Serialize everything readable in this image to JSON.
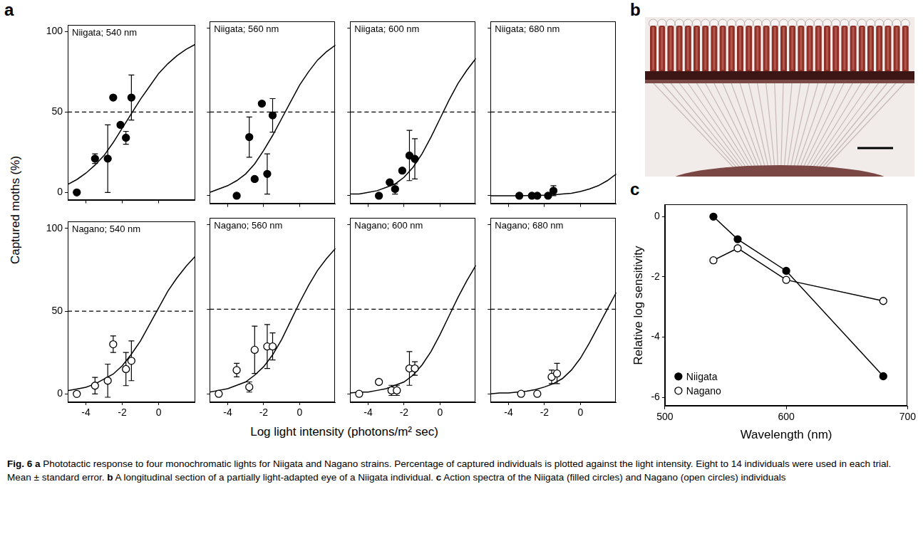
{
  "figure": {
    "panels": [
      {
        "letter": "a",
        "y_label": "Captured moths (%)",
        "x_label": "Log light intensity (photons/m² sec)"
      },
      {
        "letter": "b"
      },
      {
        "letter": "c"
      }
    ],
    "caption": {
      "label": "Fig. 6",
      "parts": [
        {
          "letter": "a",
          "text": "Phototactic response to four monochromatic lights for Niigata and Nagano strains. Percentage of captured individuals is plotted against the light intensity. Eight to 14 individuals were used in each trial. Mean ± standard error."
        },
        {
          "letter": "b",
          "text": "A longitudinal section of a partially light-adapted eye of a Niigata individual."
        },
        {
          "letter": "c",
          "text": "Action spectra of the Niigata (filled circles) and Nagano (open circles) individuals"
        }
      ]
    }
  },
  "chart_data": [
    {
      "type": "scatter",
      "title": "Niigata; 540 nm",
      "xlim": [
        -5,
        2
      ],
      "ylim": [
        -5,
        104
      ],
      "xticks": [
        -4,
        -2,
        0
      ],
      "yticks": [
        0,
        50,
        100
      ],
      "grid": false,
      "tick_labels": "y",
      "hlines": [
        {
          "value": 50,
          "line_style": "dashed"
        }
      ],
      "series": [
        {
          "type": "scatter",
          "marker": "filled_circle",
          "color": "#000000",
          "x": [
            -4.5,
            -3.5,
            -2.8,
            -2.5,
            -2.1,
            -1.8,
            -1.5
          ],
          "values": [
            0,
            21,
            21,
            59,
            42,
            34,
            59
          ],
          "errors": [
            null,
            3,
            21,
            null,
            null,
            4,
            14
          ]
        },
        {
          "type": "line",
          "line_style": "solid",
          "color": "#000000",
          "x": [
            -5,
            -4.5,
            -4,
            -3.5,
            -3,
            -2.5,
            -2,
            -1.5,
            -1,
            -0.5,
            0,
            0.5,
            1,
            1.5,
            2
          ],
          "values": [
            5,
            8,
            12,
            17,
            23,
            31,
            40,
            49,
            58,
            66,
            74,
            80,
            85,
            89,
            92
          ]
        }
      ]
    },
    {
      "type": "scatter",
      "title": "Niigata; 560 nm",
      "xlim": [
        -5,
        2
      ],
      "ylim": [
        -5,
        104
      ],
      "xticks": [
        -4,
        -2,
        0
      ],
      "yticks": [
        0,
        50,
        100
      ],
      "grid": false,
      "tick_labels": false,
      "hlines": [
        {
          "value": 50,
          "line_style": "dashed"
        }
      ],
      "series": [
        {
          "type": "scatter",
          "marker": "filled_circle",
          "color": "#000000",
          "x": [
            -3.5,
            -2.8,
            -2.5,
            -2.1,
            -1.8,
            -1.5
          ],
          "values": [
            0,
            35,
            10,
            55,
            13,
            48
          ],
          "errors": [
            null,
            12,
            null,
            null,
            12,
            10
          ]
        },
        {
          "type": "line",
          "line_style": "solid",
          "color": "#000000",
          "x": [
            -5,
            -4.5,
            -4,
            -3.5,
            -3,
            -2.5,
            -2,
            -1.5,
            -1,
            -0.5,
            0,
            0.5,
            1,
            1.5,
            2
          ],
          "values": [
            2,
            4,
            6,
            9,
            13,
            19,
            27,
            36,
            46,
            56,
            66,
            74,
            81,
            86,
            90
          ]
        }
      ]
    },
    {
      "type": "scatter",
      "title": "Niigata; 600 nm",
      "xlim": [
        -5,
        2
      ],
      "ylim": [
        -5,
        104
      ],
      "xticks": [
        -4,
        -2,
        0
      ],
      "yticks": [
        0,
        50,
        100
      ],
      "grid": false,
      "tick_labels": false,
      "hlines": [
        {
          "value": 50,
          "line_style": "dashed"
        }
      ],
      "series": [
        {
          "type": "scatter",
          "marker": "filled_circle",
          "color": "#000000",
          "x": [
            -3.4,
            -2.8,
            -2.5,
            -2.1,
            -1.7,
            -1.4
          ],
          "values": [
            0,
            8,
            4,
            15,
            24,
            22
          ],
          "errors": [
            null,
            null,
            3,
            null,
            15,
            12
          ]
        },
        {
          "type": "line",
          "line_style": "solid",
          "color": "#000000",
          "x": [
            -5,
            -4.5,
            -4,
            -3.5,
            -3,
            -2.5,
            -2,
            -1.5,
            -1,
            -0.5,
            0,
            0.5,
            1,
            1.5,
            2
          ],
          "values": [
            1,
            1,
            2,
            3,
            5,
            7,
            11,
            17,
            25,
            35,
            46,
            57,
            67,
            75,
            82
          ]
        }
      ]
    },
    {
      "type": "scatter",
      "title": "Niigata; 680 nm",
      "xlim": [
        -5,
        2
      ],
      "ylim": [
        -5,
        104
      ],
      "xticks": [
        -4,
        -2,
        0
      ],
      "yticks": [
        0,
        50,
        100
      ],
      "grid": false,
      "tick_labels": false,
      "hlines": [
        {
          "value": 50,
          "line_style": "dashed"
        }
      ],
      "series": [
        {
          "type": "scatter",
          "marker": "filled_circle",
          "color": "#000000",
          "x": [
            -3.4,
            -2.7,
            -2.4,
            -1.8,
            -1.5
          ],
          "values": [
            0,
            0,
            0,
            0,
            3
          ],
          "errors": [
            null,
            null,
            null,
            null,
            3
          ]
        },
        {
          "type": "line",
          "line_style": "solid",
          "color": "#000000",
          "x": [
            -5,
            -4.5,
            -4,
            -3.5,
            -3,
            -2.5,
            -2,
            -1.5,
            -1,
            -0.5,
            0,
            0.5,
            1,
            1.5,
            2
          ],
          "values": [
            0,
            0,
            0,
            0,
            0.1,
            0.2,
            0.3,
            0.5,
            1,
            1.5,
            2.5,
            4,
            6,
            9,
            13
          ]
        }
      ]
    },
    {
      "type": "scatter",
      "title": "Nagano; 540 nm",
      "xlim": [
        -5,
        2
      ],
      "ylim": [
        -5,
        104
      ],
      "xticks": [
        -4,
        -2,
        0
      ],
      "yticks": [
        0,
        50,
        100
      ],
      "grid": false,
      "hlines": [
        {
          "value": 50,
          "line_style": "dashed"
        }
      ],
      "series": [
        {
          "type": "scatter",
          "marker": "open_circle",
          "color": "#000000",
          "x": [
            -4.5,
            -3.5,
            -2.8,
            -2.5,
            -1.8,
            -1.5
          ],
          "values": [
            0,
            5,
            8,
            30,
            15,
            20
          ],
          "errors": [
            null,
            5,
            10,
            5,
            10,
            12
          ]
        },
        {
          "type": "line",
          "line_style": "solid",
          "color": "#000000",
          "x": [
            -5,
            -4.5,
            -4,
            -3.5,
            -3,
            -2.5,
            -2,
            -1.5,
            -1,
            -0.5,
            0,
            0.5,
            1,
            1.5,
            2
          ],
          "values": [
            2,
            3,
            4,
            6,
            9,
            12,
            17,
            24,
            32,
            42,
            52,
            62,
            70,
            77,
            83
          ]
        }
      ]
    },
    {
      "type": "scatter",
      "title": "Nagano; 560 nm",
      "xlim": [
        -5,
        2
      ],
      "ylim": [
        -5,
        104
      ],
      "xticks": [
        -4,
        -2,
        0
      ],
      "yticks": [
        0,
        50,
        100
      ],
      "grid": false,
      "tick_labels": "x",
      "hlines": [
        {
          "value": 50,
          "line_style": "dashed"
        }
      ],
      "series": [
        {
          "type": "scatter",
          "marker": "open_circle",
          "color": "#000000",
          "x": [
            -4.5,
            -3.5,
            -2.8,
            -2.5,
            -1.8,
            -1.5
          ],
          "values": [
            0,
            14,
            4,
            26,
            28,
            28
          ],
          "errors": [
            null,
            4,
            3,
            14,
            13,
            8
          ]
        },
        {
          "type": "line",
          "line_style": "solid",
          "color": "#000000",
          "x": [
            -5,
            -4.5,
            -4,
            -3.5,
            -3,
            -2.5,
            -2,
            -1.5,
            -1,
            -0.5,
            0,
            0.5,
            1,
            1.5,
            2
          ],
          "values": [
            1,
            2,
            3,
            5,
            7,
            11,
            16,
            23,
            32,
            43,
            54,
            64,
            73,
            80,
            86
          ]
        }
      ]
    },
    {
      "type": "scatter",
      "title": "Nagano; 600 nm",
      "xlim": [
        -5,
        2
      ],
      "ylim": [
        -5,
        104
      ],
      "xticks": [
        -4,
        -2,
        0
      ],
      "yticks": [
        0,
        50,
        100
      ],
      "grid": false,
      "tick_labels": "x",
      "hlines": [
        {
          "value": 50,
          "line_style": "dashed"
        }
      ],
      "series": [
        {
          "type": "scatter",
          "marker": "open_circle",
          "color": "#000000",
          "x": [
            -4.5,
            -3.4,
            -2.7,
            -2.4,
            -1.7,
            -1.4
          ],
          "values": [
            0,
            7,
            2,
            2,
            15,
            15
          ],
          "errors": [
            null,
            null,
            3,
            3,
            10,
            4
          ]
        },
        {
          "type": "line",
          "line_style": "solid",
          "color": "#000000",
          "x": [
            -5,
            -4.5,
            -4,
            -3.5,
            -3,
            -2.5,
            -2,
            -1.5,
            -1,
            -0.5,
            0,
            0.5,
            1,
            1.5,
            2
          ],
          "values": [
            0.5,
            1,
            1,
            2,
            3,
            5,
            7,
            11,
            17,
            25,
            35,
            46,
            57,
            67,
            76
          ]
        }
      ]
    },
    {
      "type": "scatter",
      "title": "Nagano; 680 nm",
      "xlim": [
        -5,
        2
      ],
      "ylim": [
        -5,
        104
      ],
      "xticks": [
        -4,
        -2,
        0
      ],
      "yticks": [
        0,
        50,
        100
      ],
      "grid": false,
      "tick_labels": "x",
      "hlines": [
        {
          "value": 50,
          "line_style": "dashed"
        }
      ],
      "series": [
        {
          "type": "scatter",
          "marker": "open_circle",
          "color": "#000000",
          "x": [
            -3.3,
            -2.4,
            -1.6,
            -1.3
          ],
          "values": [
            0,
            0,
            10,
            12
          ],
          "errors": [
            null,
            null,
            4,
            6
          ]
        },
        {
          "type": "line",
          "line_style": "solid",
          "color": "#000000",
          "x": [
            -5,
            -4.5,
            -4,
            -3.5,
            -3,
            -2.5,
            -2,
            -1.5,
            -1,
            -0.5,
            0,
            0.5,
            1,
            1.5,
            2
          ],
          "values": [
            0,
            0.5,
            0.5,
            1,
            1.5,
            2.5,
            4,
            6,
            9,
            14,
            21,
            30,
            40,
            50,
            60
          ]
        }
      ]
    },
    {
      "type": "line",
      "x_label": "Wavelength (nm)",
      "y_label": "Relative log sensitivity",
      "x": [
        540,
        560,
        600,
        680
      ],
      "xlim": [
        500,
        700
      ],
      "ylim": [
        -6.3,
        0.4
      ],
      "xticks": [
        500,
        600,
        700
      ],
      "yticks": [
        -6,
        -4,
        -2,
        0
      ],
      "grid": false,
      "legend": "bottom-left",
      "series": [
        {
          "name": "Niigata",
          "marker": "filled_circle",
          "line_style": "solid",
          "color": "#000000",
          "values": [
            0,
            -0.75,
            -1.8,
            -5.3
          ]
        },
        {
          "name": "Nagano",
          "marker": "open_circle",
          "line_style": "solid",
          "color": "#000000",
          "values": [
            -1.45,
            -1.05,
            -2.1,
            -2.8
          ]
        }
      ]
    }
  ]
}
